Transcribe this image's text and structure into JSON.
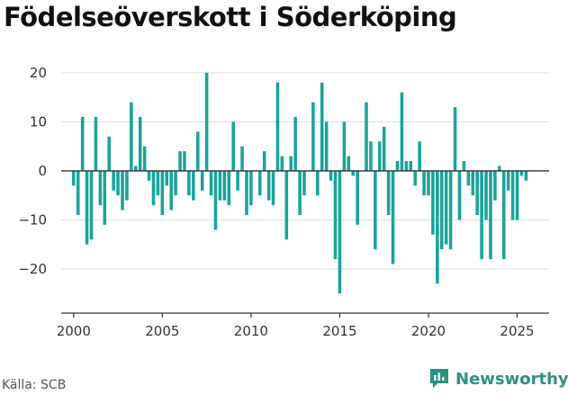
{
  "title": "Födelseöverskott i Söderköping",
  "source": "Källa: SCB",
  "brand": {
    "name": "Newsworthy",
    "icon": "newsworthy-logo-icon",
    "color": "#2a9184"
  },
  "chart_data": {
    "type": "bar",
    "title": "Födelseöverskott i Söderköping",
    "xlabel": "",
    "ylabel": "",
    "bar_color": "#19a39a",
    "grid": true,
    "xlim": [
      1999.3,
      2026.8
    ],
    "ylim": [
      -29,
      22
    ],
    "x_ticks": [
      2000,
      2005,
      2010,
      2015,
      2020,
      2025
    ],
    "y_ticks": [
      20,
      10,
      0,
      -10,
      -20
    ],
    "y_tick_labels": [
      "20",
      "10",
      "0",
      "−10",
      "−20"
    ],
    "x_tick_labels": [
      "2000",
      "2005",
      "2010",
      "2015",
      "2020",
      "2025"
    ],
    "period": "quarterly",
    "start": 2000.0,
    "values": [
      -3,
      -9,
      11,
      -15,
      -14,
      11,
      -7,
      -11,
      7,
      -4,
      -5,
      -8,
      -6,
      14,
      1,
      11,
      5,
      -2,
      -7,
      -5,
      -9,
      -3,
      -8,
      -5,
      4,
      4,
      -5,
      -6,
      8,
      -4,
      20,
      -5,
      -12,
      -6,
      -6,
      -7,
      10,
      -4,
      5,
      -9,
      -7,
      0,
      -5,
      4,
      -6,
      -7,
      18,
      3,
      -14,
      3,
      11,
      -9,
      -5,
      0,
      14,
      -5,
      18,
      10,
      -2,
      -18,
      -25,
      10,
      3,
      -1,
      -11,
      0,
      14,
      6,
      -16,
      6,
      9,
      -9,
      -19,
      2,
      16,
      2,
      2,
      -3,
      6,
      -5,
      -5,
      -13,
      -23,
      -16,
      -15,
      -16,
      13,
      -10,
      2,
      -3,
      -5,
      -9,
      -18,
      -10,
      -18,
      -6,
      1,
      -18,
      -4,
      -10,
      -10,
      -1,
      -2
    ]
  }
}
